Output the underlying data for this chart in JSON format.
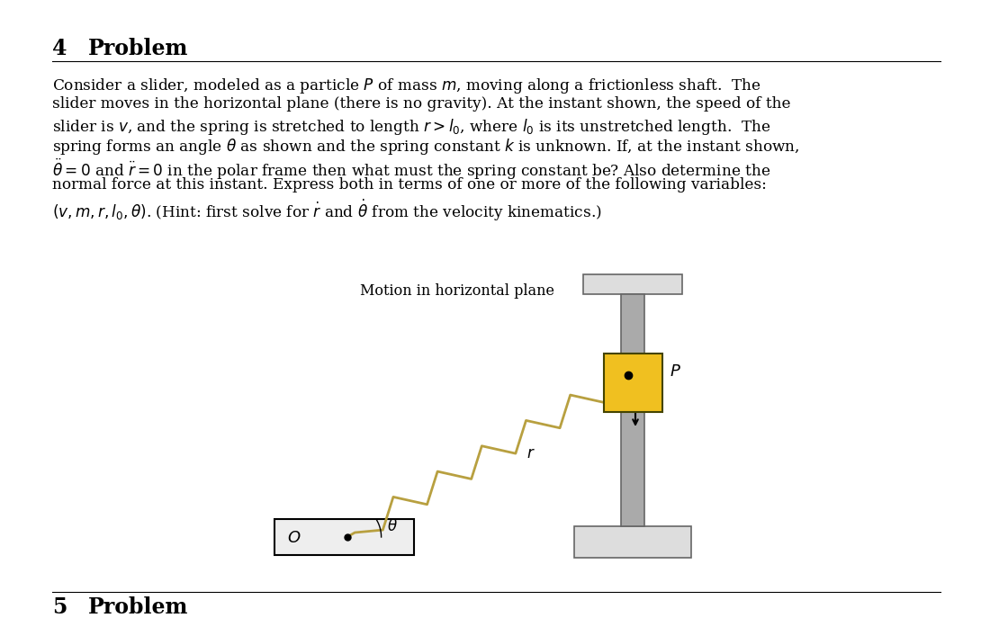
{
  "bg_color": "#ffffff",
  "spring_color": "#b8a040",
  "slider_color": "#f0c020",
  "shaft_color": "#aaaaaa",
  "shaft_edge_color": "#666666",
  "platform_color": "#dddddd",
  "platform_edge": "#888888",
  "origin_box_color": "#eeeeee",
  "diagram_label": "Motion in horizontal plane",
  "title_num": "4",
  "title_word": "Problem",
  "body_lines": [
    "Consider a slider, modeled as a particle $P$ of mass $m$, moving along a frictionless shaft.  The",
    "slider moves in the horizontal plane (there is no gravity). At the instant shown, the speed of the",
    "slider is $v$, and the spring is stretched to length $r > l_0$, where $l_0$ is its unstretched length.  The",
    "spring forms an angle $\\theta$ as shown and the spring constant $k$ is unknown. If, at the instant shown,",
    "$\\ddot{\\theta} = 0$ and $\\ddot{r} = 0$ in the polar frame then what must the spring constant be? Also determine the",
    "normal force at this instant. Express both in terms of one or more of the following variables:",
    "$(v, m, r, l_0, \\theta)$. (Hint: first solve for $\\dot{r}$ and $\\dot{\\theta}$ from the velocity kinematics.)"
  ],
  "footer_text": "5   Problem"
}
